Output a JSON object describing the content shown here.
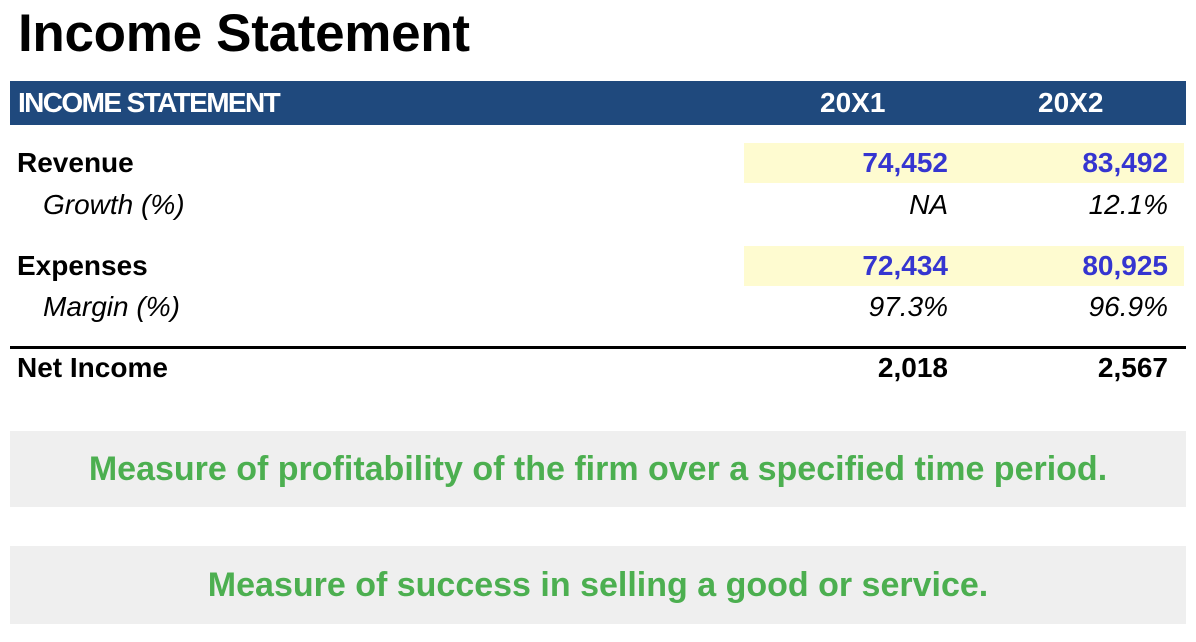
{
  "page": {
    "title": "Income Statement"
  },
  "table": {
    "header": {
      "label": "INCOME STATEMENT",
      "columns": [
        "20X1",
        "20X2"
      ],
      "background_color": "#1f497d"
    },
    "rows": [
      {
        "label": "Revenue",
        "style": "bold",
        "values": [
          "74,452",
          "83,492"
        ],
        "input_highlight": true
      },
      {
        "label": "Growth (%)",
        "style": "italic",
        "values": [
          "NA",
          "12.1%"
        ],
        "input_highlight": false
      },
      {
        "label": "Expenses",
        "style": "bold",
        "values": [
          "72,434",
          "80,925"
        ],
        "input_highlight": true
      },
      {
        "label": "Margin (%)",
        "style": "italic",
        "values": [
          "97.3%",
          "96.9%"
        ],
        "input_highlight": false
      },
      {
        "label": "Net Income",
        "style": "bold",
        "values": [
          "2,018",
          "2,567"
        ],
        "input_highlight": false
      }
    ],
    "input_cell_fill": "#fefbd0",
    "input_text_color": "#3535d0"
  },
  "notes": [
    {
      "text": "Measure of profitability of the firm over a specified time period."
    },
    {
      "text": "Measure of success in selling a good or service."
    }
  ],
  "colors": {
    "note_text": "#4caf50",
    "note_background": "#efefef"
  }
}
